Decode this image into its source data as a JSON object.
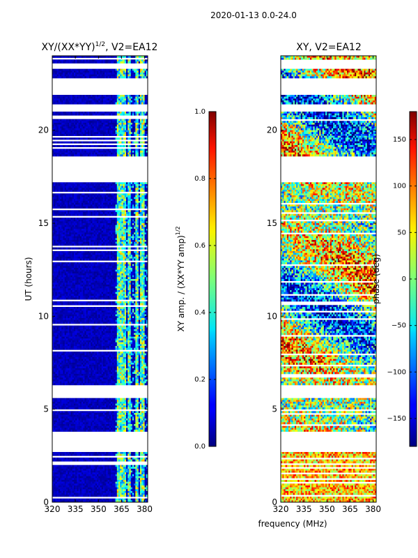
{
  "figure_title": "2020-01-13 0.0-24.0",
  "shared_xlabel": "frequency (MHz)",
  "chart_data": [
    {
      "type": "heatmap",
      "title": "XY/(XX*YY)^(1/2), V2=EA12",
      "title_main": "XY/(XX*YY)",
      "title_exp": "1/2",
      "title_tail": ", V2=EA12",
      "xlabel": "frequency (MHz)",
      "ylabel": "UT (hours)",
      "xlim": [
        320,
        382
      ],
      "ylim": [
        0,
        24
      ],
      "xticks": [
        320,
        335,
        350,
        365,
        380
      ],
      "yticks": [
        0,
        5,
        10,
        15,
        20
      ],
      "colorbar": {
        "label": "XY amp. / (XX*YY amp)^(1/2)",
        "label_main": "XY amp. / (XX*YY amp)",
        "label_exp": "1/2",
        "range": [
          0.0,
          1.0
        ],
        "ticks": [
          0.0,
          0.2,
          0.4,
          0.6,
          0.8,
          1.0
        ],
        "tick_labels": [
          "0.0",
          "0.2",
          "0.4",
          "0.6",
          "0.8",
          "1.0"
        ]
      },
      "data_gaps_ut": [
        [
          2.7,
          3.8
        ],
        [
          5.6,
          6.3
        ],
        [
          17.2,
          18.6
        ],
        [
          21.0,
          21.4
        ],
        [
          21.9,
          22.8
        ],
        [
          23.3,
          23.6
        ]
      ],
      "bright_channels_mhz": [
        [
          362,
          365
        ],
        [
          365.5,
          368
        ],
        [
          369,
          371
        ],
        [
          374,
          376
        ],
        [
          377,
          380
        ]
      ]
    },
    {
      "type": "heatmap",
      "title": "XY, V2=EA12",
      "xlabel": "frequency (MHz)",
      "ylabel": "",
      "xlim": [
        320,
        382
      ],
      "ylim": [
        0,
        24
      ],
      "xticks": [
        320,
        335,
        350,
        365,
        380
      ],
      "yticks": [
        0,
        5,
        10,
        15,
        20
      ],
      "colorbar": {
        "label": "phase (deg)",
        "range": [
          -180,
          180
        ],
        "ticks": [
          -150,
          -100,
          -50,
          0,
          50,
          100,
          150
        ],
        "tick_labels": [
          "−150",
          "−100",
          "−50",
          "0",
          "50",
          "100",
          "150"
        ]
      },
      "data_gaps_ut": [
        [
          2.7,
          3.8
        ],
        [
          5.6,
          6.3
        ],
        [
          17.2,
          18.6
        ],
        [
          21.0,
          21.4
        ],
        [
          21.9,
          22.8
        ],
        [
          23.3,
          23.6
        ]
      ]
    }
  ]
}
